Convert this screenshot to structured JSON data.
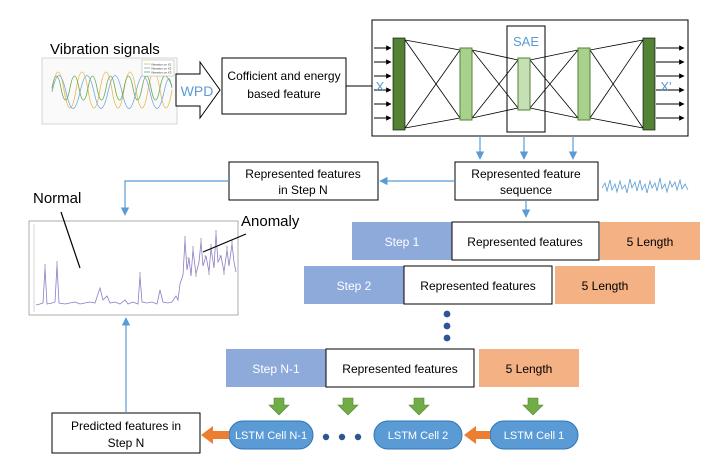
{
  "vibration": {
    "title": "Vibration signals",
    "legend": [
      "Vibration on X1",
      "Vibration on X2",
      "Vibration on X3"
    ]
  },
  "wpd": {
    "label": "WPD"
  },
  "feature_box": {
    "line1": "Cofficient and energy",
    "line2": "based feature"
  },
  "autoencoder": {
    "input_label": "X",
    "output_label": "X'",
    "bottleneck_label": "SAE"
  },
  "sequence_box": {
    "line1": "Represented feature",
    "line2": "sequence"
  },
  "step_n_box": {
    "line1": "Represented features",
    "line2": "in Step N"
  },
  "plot": {
    "normal_label": "Normal",
    "anomaly_label": "Anomaly"
  },
  "steps": [
    {
      "step": "Step 1",
      "features": "Represented features",
      "length": "5 Length"
    },
    {
      "step": "Step 2",
      "features": "Represented features",
      "length": "5 Length"
    },
    {
      "step": "Step N-1",
      "features": "Represented features",
      "length": "5 Length"
    }
  ],
  "lstm": {
    "cells": [
      "LSTM Cell N-1",
      "LSTM Cell 2",
      "LSTM Cell 1"
    ]
  },
  "predicted_box": {
    "line1": "Predicted features in",
    "line2": "Step N"
  },
  "colors": {
    "flow_arrow": "#5b9bd5",
    "step_fill": "#8eaadb",
    "length_fill": "#f4b183",
    "lstm_fill": "#5b9bd5",
    "layer_dark": "#548235",
    "layer_light": "#a9d18e",
    "input_arrow": "#70ad47",
    "output_arrow": "#ed7d31",
    "signal_line": "#8e7cc3"
  }
}
